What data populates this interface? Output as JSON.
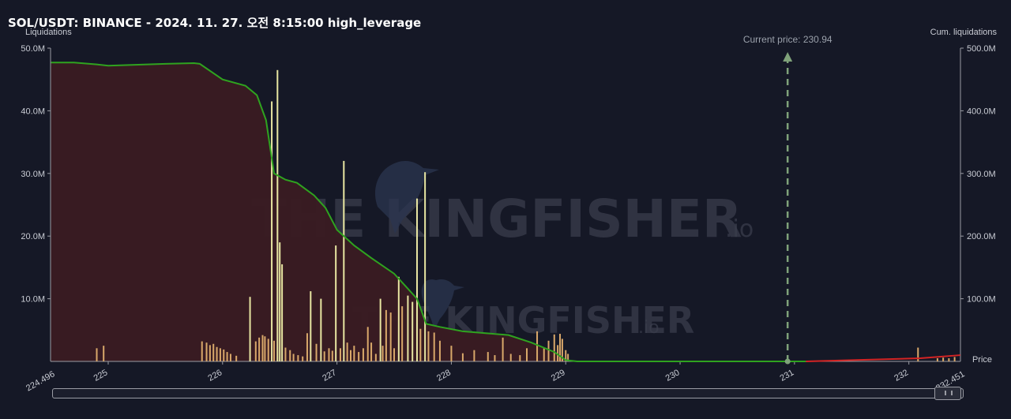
{
  "title": "SOL/USDT: BINANCE - 2024. 11. 27. 오전 8:15:00 high_leverage",
  "watermark": {
    "text_big": "THE KINGFISHER",
    "text_suffix": ".io"
  },
  "ui": {
    "scrollbar_label": "Chart range scrollbar"
  },
  "chart_data": {
    "type": "bar",
    "y_left_label": "Liquidations",
    "y_right_label": "Cum. liquidations",
    "x_label": "Price",
    "x_range": [
      224.496,
      232.451
    ],
    "x_ticks": [
      "225",
      "226",
      "227",
      "228",
      "229",
      "230",
      "231",
      "232"
    ],
    "x_ticks_values": [
      225,
      226,
      227,
      228,
      229,
      230,
      231,
      232
    ],
    "x_edge_labels": [
      "224.496",
      "232.451"
    ],
    "y_left_range": [
      0,
      50
    ],
    "y_left_ticks": [
      "10.0M",
      "20.0M",
      "30.0M",
      "40.0M",
      "50.0M"
    ],
    "y_left_ticks_values": [
      10,
      20,
      30,
      40,
      50
    ],
    "y_right_range": [
      0,
      500
    ],
    "y_right_ticks": [
      "100.0M",
      "200.0M",
      "300.0M",
      "400.0M",
      "500.0M"
    ],
    "y_right_ticks_values": [
      100,
      200,
      300,
      400,
      500
    ],
    "units": "M",
    "current_price_label": "Current price: 230.94",
    "current_price": 230.94,
    "colors": {
      "background": "#151826",
      "bar_low": "#d9a86a",
      "bar_high": "#e8e6a2",
      "cum_line_below": "#2fa31f",
      "cum_line_above": "#d42424",
      "cum_fill": "#3a1b22",
      "current_price_line": "#7fa27a",
      "axis": "#9a9ca4"
    },
    "series": [
      {
        "name": "Liquidations",
        "values": [
          [
            224.9,
            2.1
          ],
          [
            224.96,
            2.5
          ],
          [
            225.82,
            3.2
          ],
          [
            225.86,
            3.0
          ],
          [
            225.89,
            2.6
          ],
          [
            225.92,
            2.8
          ],
          [
            225.95,
            2.3
          ],
          [
            225.98,
            2.1
          ],
          [
            226.01,
            1.9
          ],
          [
            226.04,
            1.5
          ],
          [
            226.07,
            1.2
          ],
          [
            226.12,
            0.9
          ],
          [
            226.24,
            10.3
          ],
          [
            226.29,
            3.2
          ],
          [
            226.32,
            3.8
          ],
          [
            226.35,
            4.2
          ],
          [
            226.37,
            4.0
          ],
          [
            226.4,
            3.6
          ],
          [
            226.43,
            41.5
          ],
          [
            226.45,
            3.3
          ],
          [
            226.48,
            46.5
          ],
          [
            226.5,
            19.0
          ],
          [
            226.52,
            15.5
          ],
          [
            226.55,
            2.2
          ],
          [
            226.59,
            1.8
          ],
          [
            226.62,
            1.2
          ],
          [
            226.66,
            1.0
          ],
          [
            226.7,
            0.8
          ],
          [
            226.74,
            4.5
          ],
          [
            226.77,
            11.2
          ],
          [
            226.82,
            2.8
          ],
          [
            226.86,
            10.0
          ],
          [
            226.89,
            1.6
          ],
          [
            226.93,
            2.1
          ],
          [
            226.96,
            1.7
          ],
          [
            226.99,
            18.5
          ],
          [
            227.03,
            2.1
          ],
          [
            227.06,
            32.0
          ],
          [
            227.09,
            3.0
          ],
          [
            227.12,
            1.8
          ],
          [
            227.15,
            2.5
          ],
          [
            227.19,
            1.5
          ],
          [
            227.23,
            2.1
          ],
          [
            227.27,
            5.5
          ],
          [
            227.3,
            3.0
          ],
          [
            227.34,
            1.2
          ],
          [
            227.38,
            10.0
          ],
          [
            227.4,
            2.5
          ],
          [
            227.43,
            8.2
          ],
          [
            227.47,
            7.8
          ],
          [
            227.5,
            2.1
          ],
          [
            227.54,
            13.5
          ],
          [
            227.57,
            8.8
          ],
          [
            227.62,
            10.5
          ],
          [
            227.66,
            9.5
          ],
          [
            227.7,
            26.0
          ],
          [
            227.73,
            5.2
          ],
          [
            227.77,
            30.2
          ],
          [
            227.8,
            4.8
          ],
          [
            227.85,
            4.6
          ],
          [
            227.9,
            3.3
          ],
          [
            228.0,
            2.5
          ],
          [
            228.1,
            1.3
          ],
          [
            228.2,
            1.8
          ],
          [
            228.32,
            1.5
          ],
          [
            228.38,
            1.0
          ],
          [
            228.45,
            3.8
          ],
          [
            228.52,
            1.2
          ],
          [
            228.6,
            1.0
          ],
          [
            228.66,
            2.1
          ],
          [
            228.75,
            4.8
          ],
          [
            228.81,
            2.2
          ],
          [
            228.85,
            3.3
          ],
          [
            228.9,
            4.3
          ],
          [
            228.93,
            2.6
          ],
          [
            228.95,
            4.4
          ],
          [
            228.97,
            3.6
          ],
          [
            229.0,
            1.8
          ],
          [
            229.02,
            1.2
          ],
          [
            232.08,
            2.2
          ],
          [
            232.25,
            0.5
          ],
          [
            232.3,
            0.6
          ],
          [
            232.35,
            0.5
          ],
          [
            232.4,
            0.7
          ]
        ]
      },
      {
        "name": "Cum. liquidations",
        "values": [
          [
            224.5,
            477
          ],
          [
            224.7,
            477
          ],
          [
            224.9,
            474
          ],
          [
            225.0,
            472
          ],
          [
            225.5,
            475
          ],
          [
            225.75,
            476
          ],
          [
            225.8,
            475
          ],
          [
            226.0,
            450
          ],
          [
            226.2,
            440
          ],
          [
            226.3,
            425
          ],
          [
            226.38,
            385
          ],
          [
            226.45,
            300
          ],
          [
            226.55,
            290
          ],
          [
            226.65,
            285
          ],
          [
            226.8,
            265
          ],
          [
            226.9,
            245
          ],
          [
            227.0,
            210
          ],
          [
            227.15,
            185
          ],
          [
            227.3,
            165
          ],
          [
            227.5,
            140
          ],
          [
            227.6,
            120
          ],
          [
            227.7,
            100
          ],
          [
            227.78,
            60
          ],
          [
            227.9,
            55
          ],
          [
            228.1,
            48
          ],
          [
            228.3,
            45
          ],
          [
            228.5,
            42
          ],
          [
            228.7,
            30
          ],
          [
            228.9,
            15
          ],
          [
            229.0,
            2
          ],
          [
            229.1,
            0
          ],
          [
            230.94,
            0
          ],
          [
            231.1,
            0
          ],
          [
            232.1,
            5
          ],
          [
            232.45,
            10
          ]
        ]
      }
    ]
  }
}
